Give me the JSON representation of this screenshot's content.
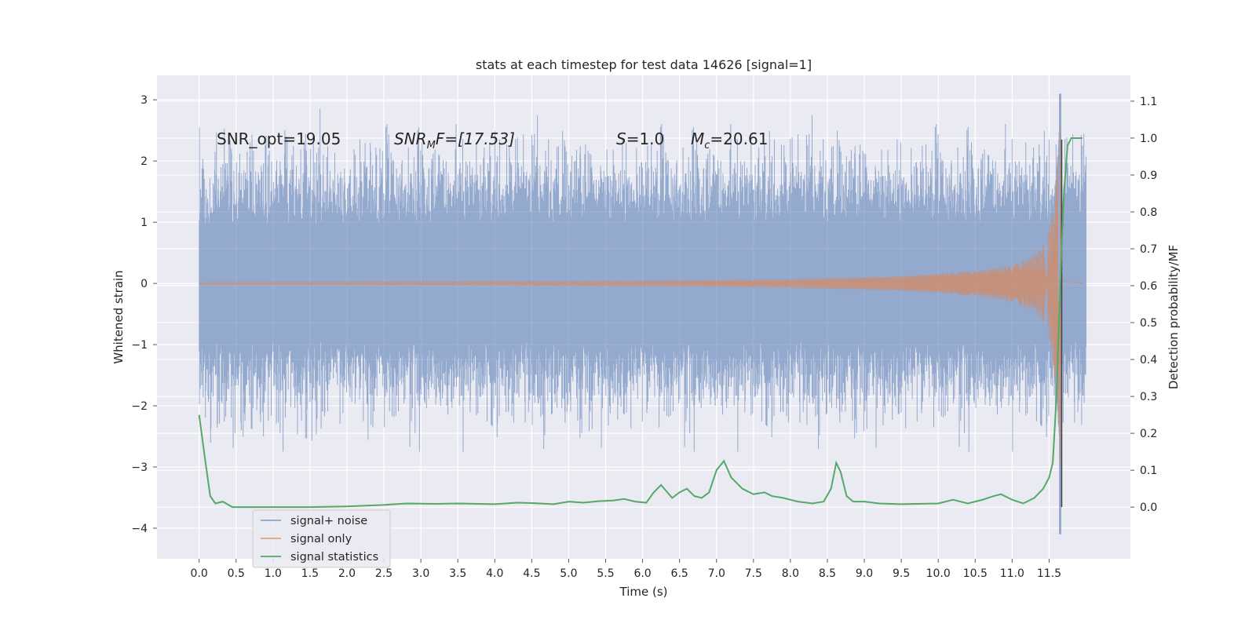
{
  "chart_data": {
    "type": "line",
    "title": "stats at each timestep for test data 14626 [signal=1]",
    "xlabel": "Time (s)",
    "ylabel": "Whitened strain",
    "y2label": "Detection probability/MF",
    "xlim": [
      -0.57,
      12.6
    ],
    "ylim": [
      -4.5,
      3.4
    ],
    "y2lim": [
      -0.14,
      1.17
    ],
    "x_ticks": [
      0.0,
      0.5,
      1.0,
      1.5,
      2.0,
      2.5,
      3.0,
      3.5,
      4.0,
      4.5,
      5.0,
      5.5,
      6.0,
      6.5,
      7.0,
      7.5,
      8.0,
      8.5,
      9.0,
      9.5,
      10.0,
      10.5,
      11.0,
      11.5
    ],
    "x_tick_labels": [
      "0.0",
      "0.5",
      "1.0",
      "1.5",
      "2.0",
      "2.5",
      "3.0",
      "3.5",
      "4.0",
      "4.5",
      "5.0",
      "5.5",
      "6.0",
      "6.5",
      "7.0",
      "7.5",
      "8.0",
      "8.5",
      "9.0",
      "9.5",
      "10.0",
      "10.5",
      "11.0",
      "11.5"
    ],
    "y_ticks": [
      -4,
      -3,
      -2,
      -1,
      0,
      1,
      2,
      3
    ],
    "y_tick_labels": [
      "−4",
      "−3",
      "−2",
      "−1",
      "0",
      "1",
      "2",
      "3"
    ],
    "y2_ticks": [
      0.0,
      0.1,
      0.2,
      0.3,
      0.4,
      0.5,
      0.6,
      0.7,
      0.8,
      0.9,
      1.0,
      1.1
    ],
    "y2_tick_labels": [
      "0.0",
      "0.1",
      "0.2",
      "0.3",
      "0.4",
      "0.5",
      "0.6",
      "0.7",
      "0.8",
      "0.9",
      "1.0",
      "1.1"
    ],
    "grid": true,
    "legend_position": "lower-left",
    "series": [
      {
        "name": "signal+ noise",
        "color": "#4c72b0",
        "axis": "left",
        "description": "whitened strain noise band, roughly ±1.5 with peaks near ±2.8",
        "x_range": [
          0.0,
          12.0
        ],
        "typical_envelope": [
          -1.6,
          1.5
        ],
        "extremes": {
          "max": 3.1,
          "min": -4.1,
          "at_time": 11.65
        }
      },
      {
        "name": "signal only",
        "color": "#dd8452",
        "axis": "left",
        "description": "chirp signal growing in amplitude, merger peak near 11.65 s",
        "envelope_x": [
          0.0,
          6.0,
          8.0,
          9.5,
          10.5,
          11.0,
          11.3,
          11.45,
          11.55,
          11.62,
          11.65,
          11.7,
          12.0
        ],
        "envelope_amplitude": [
          0.02,
          0.04,
          0.07,
          0.12,
          0.2,
          0.3,
          0.45,
          0.7,
          1.2,
          2.2,
          3.0,
          0.3,
          0.05
        ]
      },
      {
        "name": "signal statistics",
        "color": "#55a868",
        "axis": "right",
        "x": [
          0.0,
          0.08,
          0.15,
          0.22,
          0.32,
          0.45,
          0.6,
          0.8,
          1.0,
          1.5,
          2.0,
          2.5,
          2.8,
          3.2,
          3.5,
          4.0,
          4.3,
          4.5,
          4.8,
          5.0,
          5.2,
          5.4,
          5.6,
          5.75,
          5.9,
          6.05,
          6.15,
          6.25,
          6.4,
          6.5,
          6.6,
          6.7,
          6.8,
          6.9,
          7.0,
          7.1,
          7.2,
          7.35,
          7.5,
          7.65,
          7.75,
          7.9,
          8.1,
          8.3,
          8.45,
          8.55,
          8.62,
          8.68,
          8.76,
          8.85,
          9.0,
          9.2,
          9.5,
          10.0,
          10.2,
          10.4,
          10.6,
          10.75,
          10.85,
          11.0,
          11.15,
          11.3,
          11.42,
          11.5,
          11.55,
          11.6,
          11.65,
          11.7,
          11.75,
          11.8,
          11.85,
          11.95
        ],
        "y": [
          0.25,
          0.13,
          0.03,
          0.01,
          0.015,
          0.0,
          0.0,
          0.0,
          0.0,
          0.0,
          0.002,
          0.006,
          0.01,
          0.009,
          0.01,
          0.008,
          0.012,
          0.011,
          0.008,
          0.015,
          0.012,
          0.016,
          0.018,
          0.022,
          0.015,
          0.012,
          0.04,
          0.06,
          0.025,
          0.04,
          0.05,
          0.03,
          0.025,
          0.04,
          0.1,
          0.125,
          0.08,
          0.05,
          0.035,
          0.04,
          0.03,
          0.025,
          0.015,
          0.01,
          0.015,
          0.05,
          0.12,
          0.095,
          0.03,
          0.015,
          0.015,
          0.01,
          0.008,
          0.01,
          0.02,
          0.01,
          0.02,
          0.03,
          0.035,
          0.02,
          0.01,
          0.025,
          0.05,
          0.08,
          0.12,
          0.3,
          0.6,
          0.85,
          0.98,
          1.0,
          1.0,
          1.0
        ]
      }
    ],
    "vertical_marker": {
      "x": 11.67,
      "color": "#444444"
    },
    "annotations": {
      "snr_opt": "SNR_opt=19.05",
      "snr_mf_name": "SNR",
      "snr_mf_sub": "M",
      "snr_mf_rest": "F=[17.53]",
      "s_name": "S",
      "s_rest": "=1.0",
      "mc_name": "M",
      "mc_sub": "c",
      "mc_rest": "=20.61"
    }
  }
}
